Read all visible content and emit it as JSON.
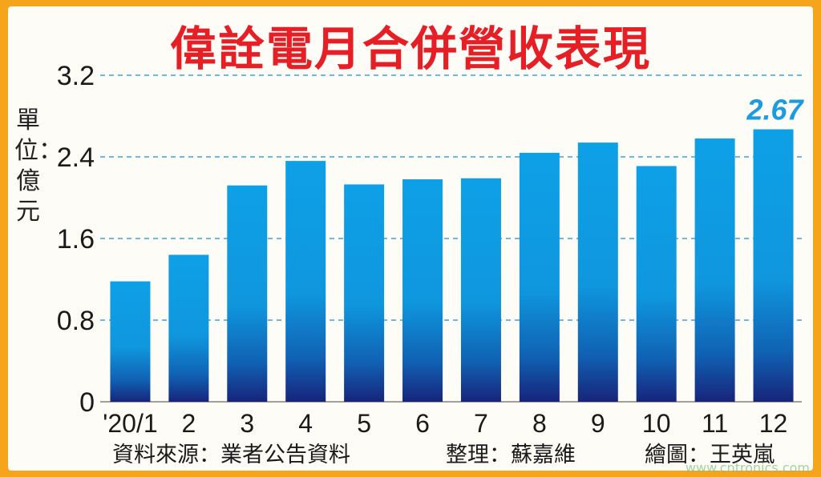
{
  "title": "偉詮電月合併營收表現",
  "unit_label": "單位：億元",
  "footer": {
    "source": "資料來源：業者公告資料",
    "editor": "整理：蘇嘉維",
    "illustrator": "繪圖：王英嵐"
  },
  "watermark": "www.cntronics.com",
  "colors": {
    "bar_top": "#0ea0e6",
    "bar_bottom": "#17247a",
    "highlight_label": "#1b9be0",
    "grid": "#3aa3e0",
    "title": "#e61e25",
    "frame": "#f6a41c"
  },
  "chart_data": {
    "type": "bar",
    "title": "偉詮電月合併營收表現",
    "ylabel": "單位：億元",
    "categories": [
      "'20/1",
      "2",
      "3",
      "4",
      "5",
      "6",
      "7",
      "8",
      "9",
      "10",
      "11",
      "12"
    ],
    "values": [
      1.18,
      1.44,
      2.12,
      2.36,
      2.13,
      2.18,
      2.19,
      2.44,
      2.54,
      2.31,
      2.58,
      2.67
    ],
    "ylim": [
      0,
      3.2
    ],
    "yticks": [
      "0",
      "0.8",
      "1.6",
      "2.4",
      "3.2"
    ],
    "grid": "horizontal dashed",
    "annotation": {
      "category": "12",
      "label": "2.67"
    }
  }
}
